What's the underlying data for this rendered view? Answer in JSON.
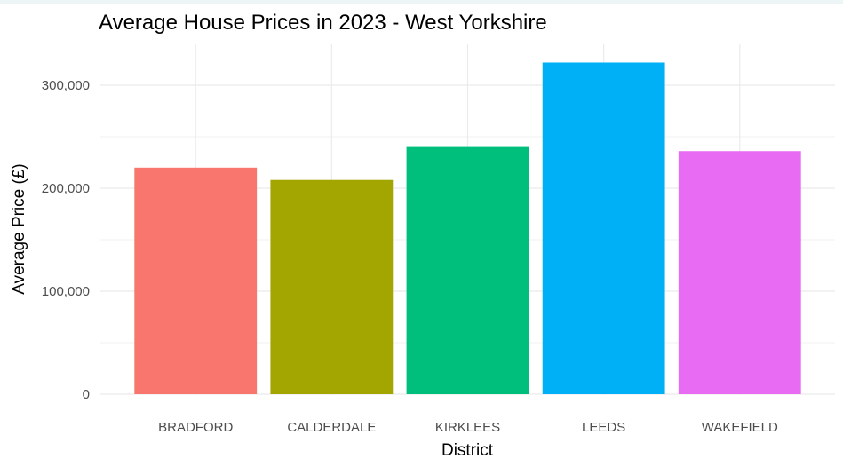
{
  "chart_data": {
    "type": "bar",
    "title": "Average House Prices in 2023 - West Yorkshire",
    "xlabel": "District",
    "ylabel": "Average Price (£)",
    "categories": [
      "BRADFORD",
      "CALDERDALE",
      "KIRKLEES",
      "LEEDS",
      "WAKEFIELD"
    ],
    "values": [
      220000,
      208000,
      240000,
      322000,
      236000
    ],
    "colors": [
      "#F8766D",
      "#A3A500",
      "#00BF7D",
      "#00B0F6",
      "#E76BF3"
    ],
    "ylim": [
      0,
      340000
    ],
    "yticks": [
      0,
      100000,
      200000,
      300000
    ],
    "ytick_labels": [
      "0",
      "100,000",
      "200,000",
      "300,000"
    ],
    "grid": true,
    "legend": "none"
  }
}
